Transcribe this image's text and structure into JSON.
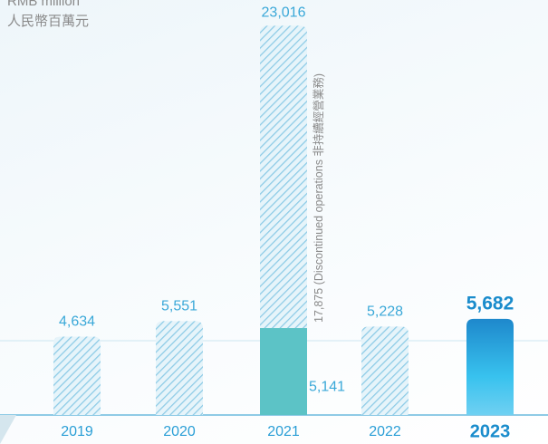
{
  "chart_data": {
    "type": "stacked-bar",
    "unit_label": "RMB million",
    "unit_label_zh": "人民幣百萬元",
    "categories": [
      "2019",
      "2020",
      "2021",
      "2022",
      "2023"
    ],
    "series": [
      {
        "values": [
          4634,
          5551,
          5141,
          5228,
          5682
        ],
        "value_labels": [
          "4,634",
          "5,551",
          "5,141",
          "5,228",
          "5,682"
        ],
        "colors": [
          "#a8d8ec",
          "#a8d8ec",
          "#5cc3c6",
          "#a8d8ec",
          "#2a9ad8"
        ],
        "hatched": [
          true,
          true,
          false,
          true,
          false
        ]
      },
      {
        "name": "(Discontinued operations 非持續經營業務)",
        "values": [
          null,
          null,
          17875,
          null,
          null
        ],
        "value_labels": [
          null,
          null,
          "17,875",
          null,
          null
        ],
        "colors": [
          null,
          null,
          "#a8d8ec",
          null,
          null
        ],
        "hatched": [
          null,
          null,
          true,
          null,
          null
        ]
      }
    ],
    "totals": {
      "values": [
        null,
        null,
        23016,
        null,
        null
      ],
      "value_labels": [
        null,
        null,
        "23,016",
        null,
        null
      ]
    },
    "ylim": [
      0,
      24000
    ]
  }
}
